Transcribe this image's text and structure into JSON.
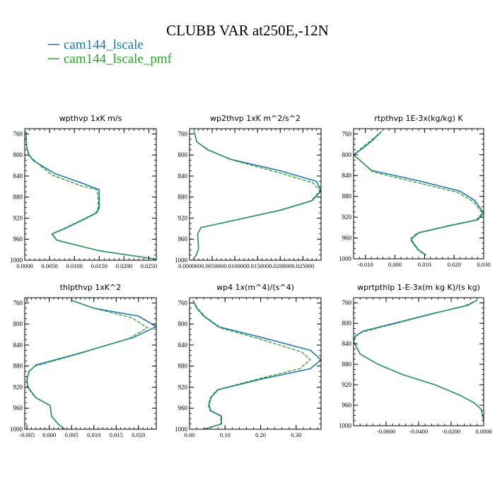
{
  "figure": {
    "title": "CLUBB VAR at250E,-12N",
    "legend": [
      {
        "name": "cam144_lscale",
        "color": "#1f77b4",
        "dash": "solid"
      },
      {
        "name": "cam144_lscale_pmf",
        "color": "#2ca02c",
        "dash": "dashed"
      }
    ]
  },
  "chart_data": [
    {
      "type": "line",
      "title": "wpthvp  1xK m/s",
      "xlim": [
        0,
        0.0265
      ],
      "ylim": [
        1000,
        750
      ],
      "xticks": [
        0,
        0.005,
        0.01,
        0.015,
        0.02,
        0.025
      ],
      "xtick_labels": [
        "0.0000",
        "0.0050",
        "0.0100",
        "0.0150",
        "0.0200",
        "0.0250"
      ],
      "yticks": [
        760,
        800,
        840,
        880,
        920,
        960,
        1000
      ],
      "series": [
        {
          "name": "cam144_lscale",
          "x": [
            0.0003,
            0.0003,
            0.0004,
            0.0008,
            0.0018,
            0.006,
            0.012,
            0.015,
            0.015,
            0.015,
            0.0145,
            0.012,
            0.008,
            0.0055,
            0.0065,
            0.015,
            0.0265
          ],
          "y": [
            755,
            770,
            785,
            800,
            811,
            835,
            855,
            866,
            885,
            900,
            910,
            922,
            940,
            950,
            962,
            982,
            998
          ]
        },
        {
          "name": "cam144_lscale_pmf",
          "x": [
            0.0003,
            0.0003,
            0.0004,
            0.0009,
            0.0023,
            0.0055,
            0.0112,
            0.0146,
            0.0148,
            0.0148,
            0.0143,
            0.0118,
            0.0078,
            0.0054,
            0.0064,
            0.015,
            0.0265
          ],
          "y": [
            755,
            770,
            785,
            800,
            814,
            838,
            858,
            866,
            885,
            900,
            910,
            922,
            940,
            950,
            962,
            982,
            998
          ]
        }
      ]
    },
    {
      "type": "line",
      "title": "wp2thvp  1xK m^2/s^2",
      "xlim": [
        0,
        0.029
      ],
      "ylim": [
        1000,
        750
      ],
      "xticks": [
        0,
        0.005,
        0.01,
        0.015,
        0.02,
        0.025
      ],
      "xtick_labels": [
        "0.000000",
        "0.005000",
        "0.010000",
        "0.015000",
        "0.020000",
        "0.025000"
      ],
      "yticks": [
        760,
        800,
        840,
        880,
        920,
        960,
        1000
      ],
      "series": [
        {
          "name": "cam144_lscale",
          "x": [
            0.001,
            0.0016,
            0.004,
            0.009,
            0.02,
            0.028,
            0.029,
            0.027,
            0.02,
            0.011,
            0.0025,
            0.0018,
            0.0019,
            0.002,
            0.0015,
            0.0008
          ],
          "y": [
            755,
            775,
            790,
            808,
            830,
            850,
            868,
            887,
            905,
            922,
            938,
            950,
            965,
            978,
            990,
            998
          ]
        },
        {
          "name": "cam144_lscale_pmf",
          "x": [
            0.001,
            0.0016,
            0.0045,
            0.01,
            0.0195,
            0.0272,
            0.0288,
            0.0268,
            0.0198,
            0.0108,
            0.0025,
            0.0018,
            0.0019,
            0.002,
            0.0015,
            0.0008
          ],
          "y": [
            755,
            775,
            792,
            811,
            833,
            853,
            868,
            887,
            905,
            922,
            938,
            950,
            965,
            978,
            990,
            998
          ]
        }
      ]
    },
    {
      "type": "line",
      "title": "rtpthvp  1E-3x(kg/kg) K",
      "xlim": [
        -0.014,
        0.03
      ],
      "ylim": [
        1000,
        750
      ],
      "xticks": [
        -0.01,
        0.0,
        0.01,
        0.02,
        0.03
      ],
      "xtick_labels": [
        "-0.010",
        "0.000",
        "0.010",
        "0.020",
        "0.030"
      ],
      "yticks": [
        760,
        800,
        840,
        880,
        920,
        960,
        1000
      ],
      "series": [
        {
          "name": "cam144_lscale",
          "x": [
            -0.0045,
            -0.0075,
            -0.011,
            -0.014,
            -0.008,
            0.008,
            0.022,
            0.027,
            0.03,
            0.028,
            0.018,
            0.008,
            0.0055,
            0.0065,
            0.008,
            0.0105
          ],
          "y": [
            755,
            772,
            788,
            800,
            830,
            850,
            870,
            888,
            912,
            925,
            937,
            950,
            962,
            972,
            983,
            993
          ]
        },
        {
          "name": "cam144_lscale_pmf",
          "x": [
            -0.0045,
            -0.008,
            -0.0115,
            -0.014,
            -0.0075,
            0.007,
            0.021,
            0.0265,
            0.0295,
            0.0275,
            0.0175,
            0.0076,
            0.0052,
            0.0062,
            0.0078,
            0.0103
          ],
          "y": [
            755,
            772,
            788,
            800,
            833,
            853,
            872,
            890,
            912,
            925,
            937,
            950,
            962,
            972,
            983,
            993
          ]
        }
      ]
    },
    {
      "type": "line",
      "title": "thlpthvp  1xK^2",
      "xlim": [
        -0.0055,
        0.024
      ],
      "ylim": [
        1000,
        750
      ],
      "xticks": [
        -0.005,
        0.0,
        0.005,
        0.01,
        0.015,
        0.02
      ],
      "xtick_labels": [
        "-0.005",
        "0.000",
        "0.005",
        "0.010",
        "0.015",
        "0.020"
      ],
      "yticks": [
        760,
        800,
        840,
        880,
        920,
        960,
        1000
      ],
      "series": [
        {
          "name": "cam144_lscale",
          "x": [
            0.005,
            0.01,
            0.02,
            0.024,
            0.019,
            0.007,
            -0.003,
            -0.0045,
            -0.005,
            -0.0048,
            -0.003,
            0.0002,
            0.0005,
            0.002,
            0.0035
          ],
          "y": [
            755,
            770,
            785,
            805,
            825,
            855,
            878,
            890,
            905,
            920,
            940,
            955,
            975,
            990,
            1000
          ]
        },
        {
          "name": "cam144_lscale_pmf",
          "x": [
            0.005,
            0.01,
            0.0185,
            0.022,
            0.018,
            0.0065,
            -0.0032,
            -0.0046,
            -0.0051,
            -0.0049,
            -0.0031,
            0.0002,
            0.0005,
            0.002,
            0.0035
          ],
          "y": [
            755,
            770,
            788,
            807,
            827,
            857,
            880,
            890,
            905,
            920,
            940,
            955,
            975,
            990,
            1000
          ]
        }
      ]
    },
    {
      "type": "line",
      "title": "wp4  1x(m^4)/(s^4)",
      "xlim": [
        0,
        0.37
      ],
      "ylim": [
        1000,
        750
      ],
      "xticks": [
        0,
        0.1,
        0.2,
        0.3
      ],
      "xtick_labels": [
        "0.00",
        "0.10",
        "0.20",
        "0.30"
      ],
      "yticks": [
        760,
        800,
        840,
        880,
        920,
        960,
        1000
      ],
      "series": [
        {
          "name": "cam144_lscale",
          "x": [
            0.01,
            0.02,
            0.04,
            0.08,
            0.2,
            0.34,
            0.37,
            0.34,
            0.2,
            0.08,
            0.06,
            0.055,
            0.06,
            0.09,
            0.09,
            0.04
          ],
          "y": [
            755,
            770,
            785,
            805,
            825,
            850,
            868,
            885,
            905,
            925,
            940,
            955,
            965,
            975,
            990,
            1000
          ]
        },
        {
          "name": "cam144_lscale_pmf",
          "x": [
            0.01,
            0.022,
            0.046,
            0.09,
            0.195,
            0.315,
            0.34,
            0.31,
            0.19,
            0.078,
            0.058,
            0.053,
            0.058,
            0.088,
            0.088,
            0.04
          ],
          "y": [
            755,
            770,
            787,
            808,
            828,
            853,
            868,
            885,
            905,
            925,
            940,
            955,
            965,
            975,
            990,
            1000
          ]
        }
      ]
    },
    {
      "type": "line",
      "title": "wprtpthlp  1-E-3x(m kg K)/(s kg)",
      "xlim": [
        -0.08,
        0.0
      ],
      "ylim": [
        1000,
        750
      ],
      "xticks": [
        -0.06,
        -0.04,
        -0.02,
        0.0
      ],
      "xtick_labels": [
        "-0.0600",
        "-0.0400",
        "-0.0200",
        "0.0000"
      ],
      "yticks": [
        760,
        800,
        840,
        880,
        920,
        960,
        1000
      ],
      "series": [
        {
          "name": "cam144_lscale",
          "x": [
            -0.004,
            -0.01,
            -0.03,
            -0.055,
            -0.074,
            -0.079,
            -0.08,
            -0.076,
            -0.065,
            -0.05,
            -0.03,
            -0.015,
            -0.006,
            -0.0015,
            0.0
          ],
          "y": [
            755,
            765,
            780,
            800,
            815,
            825,
            835,
            860,
            880,
            900,
            920,
            940,
            955,
            968,
            990
          ]
        },
        {
          "name": "cam144_lscale_pmf",
          "x": [
            -0.004,
            -0.011,
            -0.032,
            -0.056,
            -0.0745,
            -0.079,
            -0.08,
            -0.076,
            -0.065,
            -0.05,
            -0.03,
            -0.015,
            -0.006,
            -0.0015,
            0.0
          ],
          "y": [
            755,
            765,
            782,
            802,
            817,
            826,
            835,
            860,
            880,
            900,
            920,
            940,
            955,
            968,
            990
          ]
        }
      ]
    }
  ]
}
